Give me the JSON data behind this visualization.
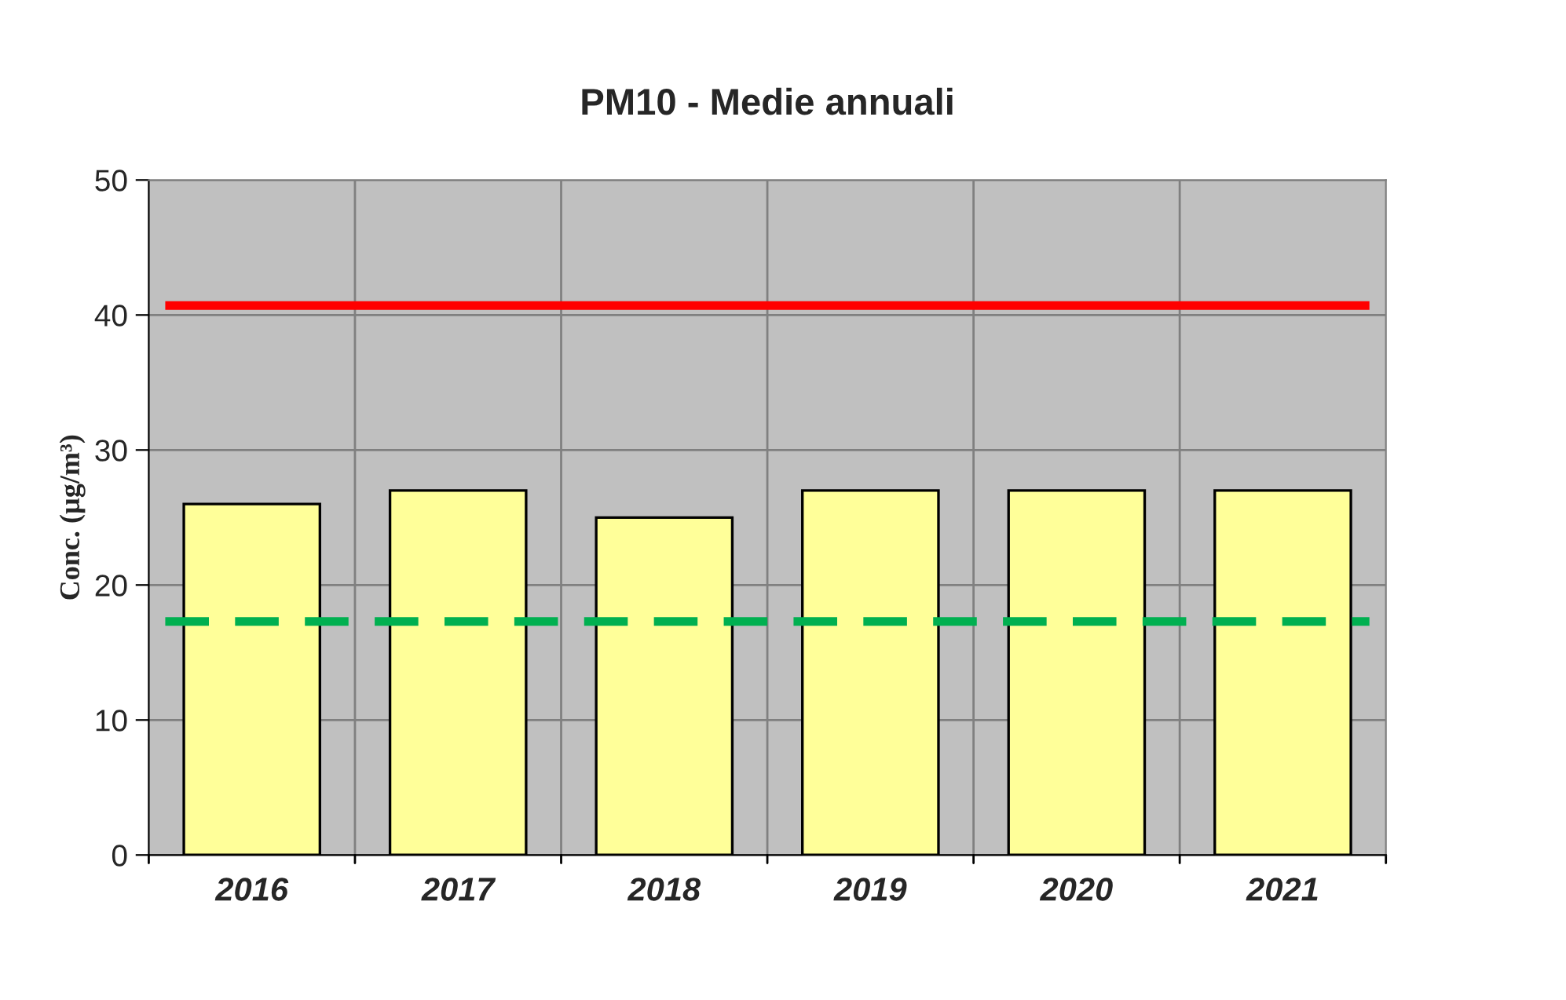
{
  "chart_data": {
    "type": "bar",
    "title": "PM10 - Medie annuali",
    "ylabel": "Conc. (µg/m³)",
    "categories": [
      "2016",
      "2017",
      "2018",
      "2019",
      "2020",
      "2021"
    ],
    "series": [
      {
        "color": "#ffff99",
        "values": [
          26,
          27,
          25,
          27,
          27,
          27
        ]
      }
    ],
    "ylim": [
      0,
      50
    ],
    "yticks": [
      0,
      10,
      20,
      30,
      40,
      50
    ],
    "grid": true,
    "ref_lines": [
      {
        "axis": "y",
        "value": 40.7,
        "color": "#ff0000",
        "line_style": "solid"
      },
      {
        "axis": "y",
        "value": 17.3,
        "color": "#00b050",
        "line_style": "dashed"
      }
    ]
  }
}
